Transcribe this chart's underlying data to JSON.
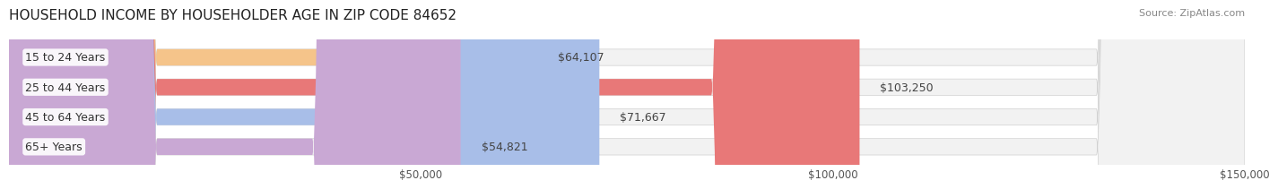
{
  "title": "HOUSEHOLD INCOME BY HOUSEHOLDER AGE IN ZIP CODE 84652",
  "source": "Source: ZipAtlas.com",
  "categories": [
    "15 to 24 Years",
    "25 to 44 Years",
    "45 to 64 Years",
    "65+ Years"
  ],
  "values": [
    64107,
    103250,
    71667,
    54821
  ],
  "bar_colors": [
    "#f5c48a",
    "#e87878",
    "#a8bee8",
    "#c9a8d4"
  ],
  "bar_bg_color": "#f0f0f0",
  "value_labels": [
    "$64,107",
    "$103,250",
    "$71,667",
    "$54,821"
  ],
  "xlim": [
    0,
    150000
  ],
  "xticks": [
    50000,
    100000,
    150000
  ],
  "xtick_labels": [
    "$50,000",
    "$100,000",
    "$150,000"
  ],
  "title_fontsize": 11,
  "label_fontsize": 9,
  "tick_fontsize": 8.5,
  "source_fontsize": 8
}
